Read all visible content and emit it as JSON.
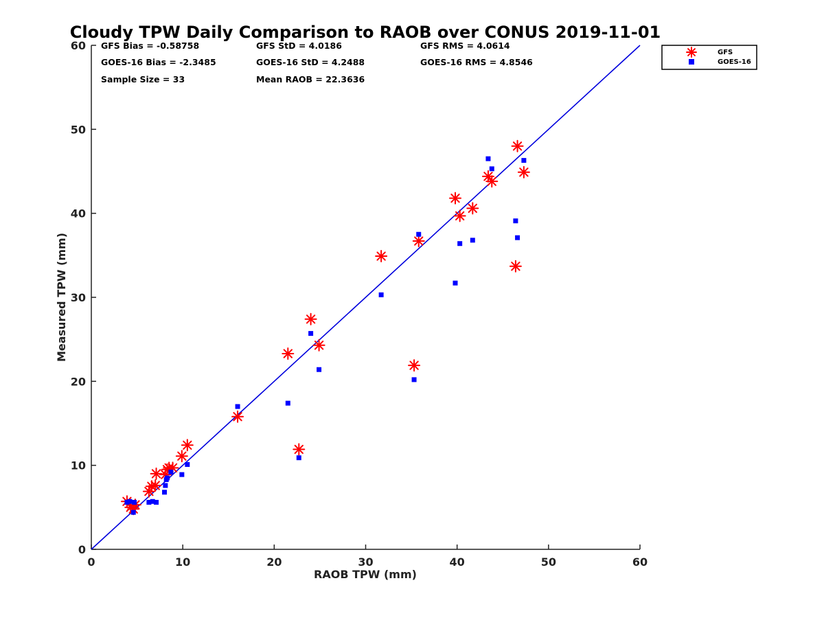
{
  "chart_data": {
    "type": "scatter",
    "title": "Cloudy TPW Daily Comparison to RAOB over CONUS 2019-11-01",
    "xlabel": "RAOB TPW (mm)",
    "ylabel": "Measured TPW (mm)",
    "xlim": [
      0,
      60
    ],
    "ylim": [
      0,
      60
    ],
    "xticks": [
      "0",
      "10",
      "20",
      "30",
      "40",
      "50",
      "60"
    ],
    "yticks": [
      "0",
      "10",
      "20",
      "30",
      "40",
      "50",
      "60"
    ],
    "reference_line": {
      "from": [
        0,
        0
      ],
      "to": [
        60,
        60
      ],
      "color": "#0000dd"
    },
    "stats": [
      "GFS Bias = -0.58758",
      "GFS StD = 4.0186",
      "GFS RMS = 4.0614",
      "GOES-16 Bias = -2.3485",
      "GOES-16 StD = 4.2488",
      "GOES-16 RMS = 4.8546",
      "Sample Size = 33",
      "Mean RAOB = 22.3636"
    ],
    "legend": {
      "placement": "outside-top-right",
      "entries": [
        "GFS",
        "GOES-16"
      ]
    },
    "series": [
      {
        "name": "GFS",
        "marker": "asterisk",
        "color": "#ff0000",
        "x": [
          3.9,
          4.3,
          4.6,
          4.8,
          6.3,
          6.6,
          7.0,
          7.1,
          8.1,
          8.3,
          8.5,
          8.9,
          9.9,
          10.5,
          16.0,
          21.5,
          22.7,
          24.0,
          24.9,
          31.7,
          35.3,
          35.8,
          39.8,
          40.3,
          41.7,
          43.4,
          43.8,
          46.4,
          46.6,
          47.3
        ],
        "y": [
          5.7,
          5.0,
          4.8,
          5.3,
          6.9,
          7.5,
          7.6,
          9.0,
          8.9,
          9.5,
          9.7,
          9.7,
          11.1,
          12.4,
          15.8,
          23.3,
          11.9,
          27.4,
          24.3,
          34.9,
          21.9,
          36.7,
          41.8,
          39.7,
          40.6,
          44.4,
          43.8,
          33.7,
          48.0,
          44.9
        ]
      },
      {
        "name": "GOES-16",
        "marker": "square",
        "color": "#0000ff",
        "x": [
          3.9,
          4.2,
          4.6,
          4.7,
          6.3,
          6.7,
          7.1,
          8.0,
          8.1,
          8.2,
          8.3,
          8.7,
          9.9,
          10.5,
          16.0,
          21.5,
          22.7,
          24.0,
          24.9,
          31.7,
          35.3,
          35.8,
          39.8,
          40.3,
          41.7,
          43.4,
          43.8,
          46.4,
          46.6,
          47.3
        ],
        "y": [
          5.6,
          5.7,
          4.4,
          5.6,
          5.6,
          5.7,
          5.6,
          6.8,
          7.6,
          8.3,
          8.5,
          9.2,
          8.9,
          10.1,
          17.0,
          17.4,
          10.9,
          25.7,
          21.4,
          30.3,
          20.2,
          37.5,
          31.7,
          36.4,
          36.8,
          46.5,
          45.3,
          39.1,
          37.1,
          46.3
        ]
      }
    ]
  }
}
